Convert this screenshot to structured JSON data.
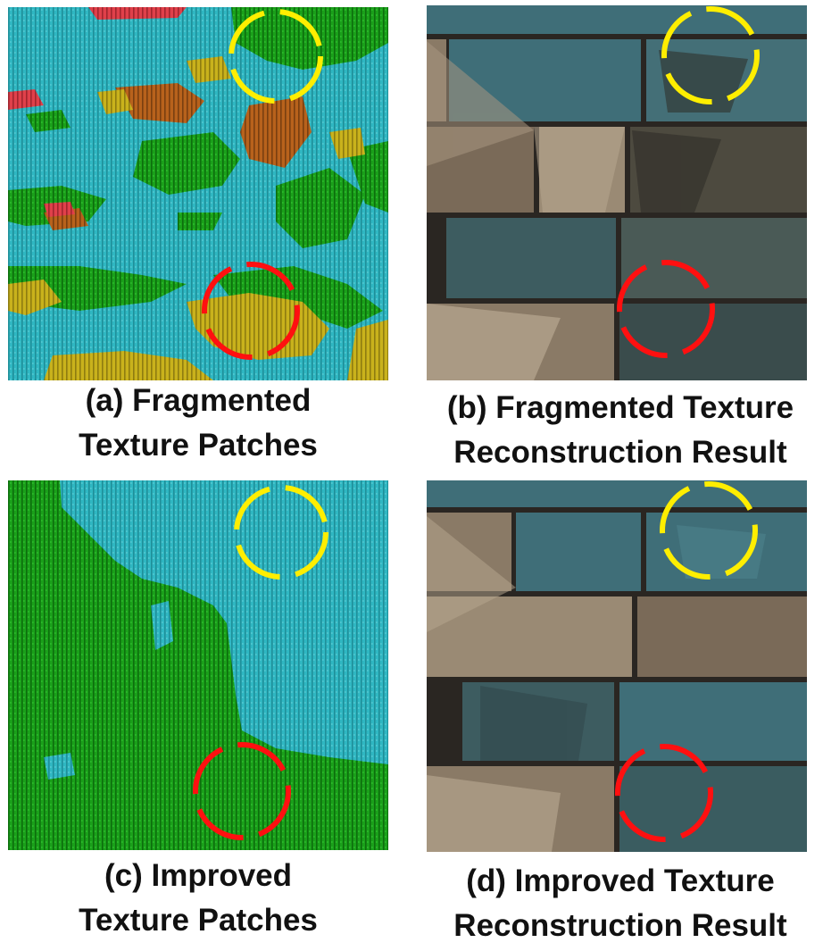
{
  "figure": {
    "panels": [
      {
        "id": "a",
        "caption_line1": "(a) Fragmented",
        "caption_line2": "Texture Patches",
        "content": "texture-patch-map"
      },
      {
        "id": "b",
        "caption_line1": "(b) Fragmented Texture",
        "caption_line2": "Reconstruction Result",
        "content": "reconstruction-render"
      },
      {
        "id": "c",
        "caption_line1": "(c) Improved",
        "caption_line2": "Texture Patches",
        "content": "texture-patch-map"
      },
      {
        "id": "d",
        "caption_line1": "(d) Improved Texture",
        "caption_line2": "Reconstruction Result",
        "content": "reconstruction-render"
      }
    ],
    "colors": {
      "patch_cyan": "#2fb7c2",
      "patch_green": "#1aa01a",
      "patch_orange": "#b8621c",
      "patch_yellow": "#c9b21c",
      "patch_red": "#e0404a",
      "brick_blue": "#3f6e78",
      "brick_stone": "#8a7a66",
      "mortar": "#2a2622",
      "highlight_yellow": "#ffee00",
      "highlight_red": "#ff1010"
    },
    "highlight_circles": [
      {
        "color_name": "yellow",
        "meaning": "region-of-interest-upper"
      },
      {
        "color_name": "red",
        "meaning": "region-of-interest-lower"
      }
    ]
  }
}
